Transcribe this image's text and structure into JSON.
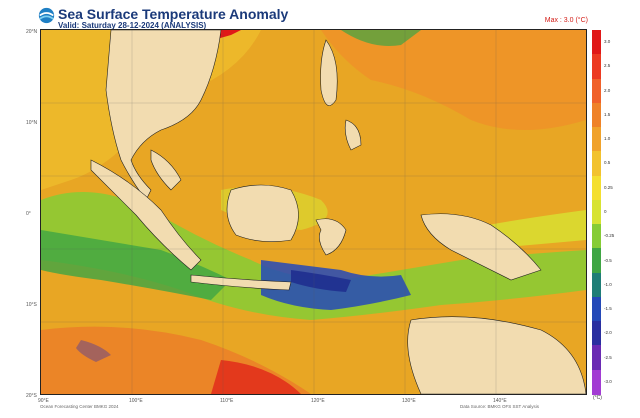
{
  "header": {
    "title": "Sea Surface Temperature Anomaly",
    "valid": "Valid: Saturday 28-12-2024 (ANALYSIS)",
    "max_label": "Max : 3.0 (°C)"
  },
  "colorbar": {
    "unit": "(°C)",
    "labels": [
      "3.0",
      "2.5",
      "2.0",
      "1.5",
      "1.0",
      "0.5",
      "0.25",
      "0",
      "-0.25",
      "-0.5",
      "-1.0",
      "-1.5",
      "-2.0",
      "-2.5",
      "-3.0"
    ],
    "colors": [
      "#e01818",
      "#ec3a22",
      "#f0612a",
      "#ef8228",
      "#f0a22b",
      "#f2c22e",
      "#f4df2f",
      "#d7e332",
      "#86cc35",
      "#3fa544",
      "#1f7e77",
      "#2449b8",
      "#2a2fa0",
      "#6a2ab3",
      "#a23bd3"
    ]
  },
  "map": {
    "lat_labels": [
      "20°N",
      "10°N",
      "0°",
      "10°S",
      "20°S"
    ],
    "lon_labels": [
      "90°E",
      "100°E",
      "110°E",
      "120°E",
      "130°E",
      "140°E"
    ],
    "ocean_color": "#e6a21c",
    "land_color": "#f2dcb0"
  },
  "footer": {
    "credit_left": "Ocean Forecasting Center BMKG 2024",
    "credit_right": "Data Source: BMKG OFS SST Analysis"
  }
}
